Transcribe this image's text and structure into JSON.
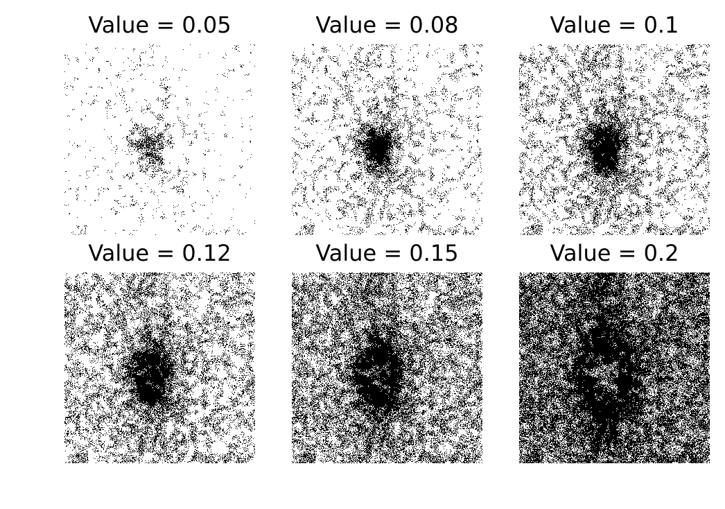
{
  "panels": [
    {
      "title": "Value = 0.05",
      "threshold": 0.05
    },
    {
      "title": "Value = 0.08",
      "threshold": 0.08
    },
    {
      "title": "Value = 0.1",
      "threshold": 0.1
    },
    {
      "title": "Value = 0.12",
      "threshold": 0.12
    },
    {
      "title": "Value = 0.15",
      "threshold": 0.15
    },
    {
      "title": "Value = 0.2",
      "threshold": 0.2
    }
  ],
  "colors": {
    "foreground": "#000000",
    "background": "#ffffff"
  }
}
